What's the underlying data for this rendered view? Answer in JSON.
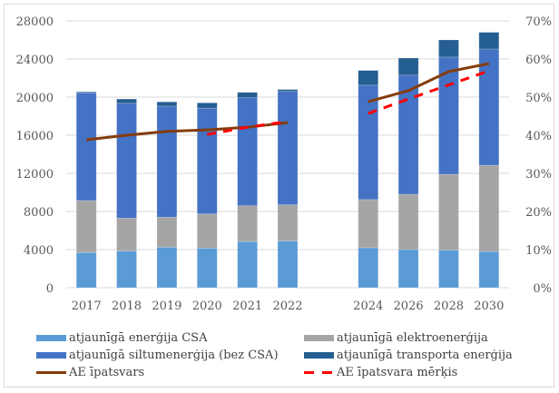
{
  "chart_data": {
    "type": "bar",
    "stacked": true,
    "title": "",
    "xlabel": "",
    "ylabel": "",
    "y2label": "",
    "categories": [
      "2017",
      "2018",
      "2019",
      "2020",
      "2021",
      "2022",
      "",
      "2024",
      "2026",
      "2028",
      "2030"
    ],
    "ylim": [
      0,
      28000
    ],
    "yticks": [
      "0",
      "4000",
      "8000",
      "12000",
      "16000",
      "20000",
      "24000",
      "28000"
    ],
    "y2lim": [
      0,
      70
    ],
    "y2ticks": [
      "0%",
      "10%",
      "20%",
      "30%",
      "40%",
      "50%",
      "60%",
      "70%"
    ],
    "grid": true,
    "legend_position": "bottom",
    "series": [
      {
        "name": "atjaunīgā enerģija CSA",
        "kind": "bar",
        "color": "#5B9BD5",
        "values": [
          3700,
          3850,
          4250,
          4150,
          4850,
          4900,
          null,
          4200,
          4000,
          3950,
          3800
        ]
      },
      {
        "name": "atjaunīgā elektroenerģija",
        "kind": "bar",
        "color": "#A5A5A5",
        "values": [
          5450,
          3450,
          3150,
          3600,
          3750,
          3800,
          null,
          5050,
          5800,
          7950,
          9050
        ]
      },
      {
        "name": "atjaunīgā siltumenerģija (bez CSA)",
        "kind": "bar",
        "color": "#4472C4",
        "values": [
          11300,
          12050,
          11650,
          11100,
          11350,
          11900,
          null,
          12000,
          12500,
          12300,
          12200
        ]
      },
      {
        "name": "atjaunīgā transporta enerģija",
        "kind": "bar",
        "color": "#255E91",
        "values": [
          100,
          450,
          450,
          550,
          550,
          200,
          null,
          1550,
          1800,
          1800,
          1750
        ]
      },
      {
        "name": "AE īpatsvars",
        "kind": "line",
        "axis": "right",
        "color": "#843C0C",
        "dash": false,
        "values": [
          38.8,
          40.0,
          41.0,
          41.4,
          42.1,
          43.3,
          null,
          48.8,
          51.7,
          56.7,
          58.8
        ]
      },
      {
        "name": "AE īpatsvara mērķis",
        "kind": "line",
        "axis": "right",
        "color": "#FF0000",
        "dash": true,
        "values": [
          null,
          null,
          null,
          40.2,
          42.1,
          43.6,
          null,
          45.7,
          49.5,
          53.2,
          56.9
        ]
      }
    ],
    "legend_order": [
      0,
      1,
      2,
      3,
      4,
      5
    ]
  }
}
